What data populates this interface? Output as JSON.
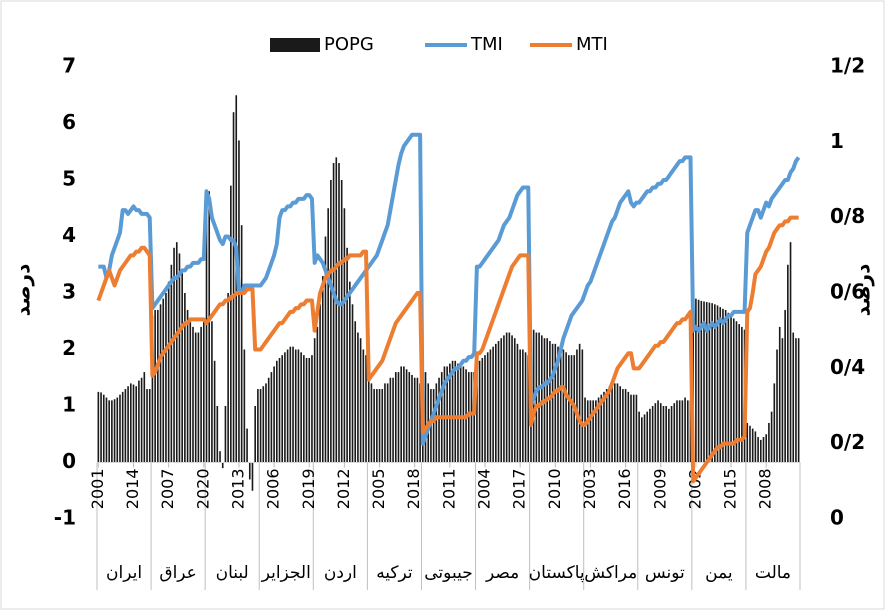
{
  "chart_data": {
    "type": "combo",
    "legend": "top",
    "y_label": "درصد",
    "y2_label": "درصد",
    "ylim": [
      -1,
      7
    ],
    "yticks": [
      -1,
      0,
      1,
      2,
      3,
      4,
      5,
      6,
      7
    ],
    "y2lim": [
      0,
      1.2
    ],
    "y2ticks": [
      0,
      {
        "value": 0.2,
        "label": "0/2"
      },
      {
        "value": 0.4,
        "label": "0/4"
      },
      {
        "value": 0.6,
        "label": "0/6"
      },
      {
        "value": 0.8,
        "label": "0/8"
      },
      1,
      {
        "value": 1.2,
        "label": "1/2"
      }
    ],
    "groups": [
      "ایران",
      "عراق",
      "لبنان",
      "الجزایر",
      "اردن",
      "ترکیه",
      "جیبوتی",
      "مصر",
      "پاکستان",
      "مراکش",
      "تونس",
      "یمن",
      "مالت"
    ],
    "categories": [
      "2001",
      null,
      null,
      null,
      null,
      null,
      null,
      null,
      null,
      null,
      null,
      null,
      null,
      "2014",
      null,
      null,
      null,
      null,
      null,
      null,
      null,
      null,
      null,
      null,
      null,
      null,
      "2007",
      null,
      null,
      null,
      null,
      null,
      null,
      null,
      null,
      null,
      null,
      null,
      null,
      "2020",
      null,
      null,
      null,
      null,
      null,
      null,
      null,
      null,
      null,
      null,
      null,
      null,
      "2013",
      null,
      null,
      null,
      null,
      null,
      null,
      null,
      null,
      null,
      null,
      null,
      null,
      "2006",
      null,
      null,
      null,
      null,
      null,
      null,
      null,
      null,
      null,
      null,
      null,
      null,
      "2019",
      null,
      null,
      null,
      null,
      null,
      null,
      null,
      null,
      null,
      null,
      null,
      null,
      "2012",
      null,
      null,
      null,
      null,
      null,
      null,
      null,
      null,
      null,
      null,
      null,
      null,
      "2005",
      null,
      null,
      null,
      null,
      null,
      null,
      null,
      null,
      null,
      null,
      null,
      null,
      "2018",
      null,
      null,
      null,
      null,
      null,
      null,
      null,
      null,
      null,
      null,
      null,
      null,
      "2011",
      null,
      null,
      null,
      null,
      null,
      null,
      null,
      null,
      null,
      null,
      null,
      null,
      "2004",
      null,
      null,
      null,
      null,
      null,
      null,
      null,
      null,
      null,
      null,
      null,
      null,
      "2017",
      null,
      null,
      null,
      null,
      null,
      null,
      null,
      null,
      null,
      null,
      null,
      null,
      "2010",
      null,
      null,
      null,
      null,
      null,
      null,
      null,
      null,
      null,
      null,
      null,
      null,
      "2003",
      null,
      null,
      null,
      null,
      null,
      null,
      null,
      null,
      null,
      null,
      null,
      null,
      "2016",
      null,
      null,
      null,
      null,
      null,
      null,
      null,
      null,
      null,
      null,
      null,
      null,
      "2009",
      null,
      null,
      null,
      null,
      null,
      null,
      null,
      null,
      null,
      null,
      null,
      null,
      "2002",
      null,
      null,
      null,
      null,
      null,
      null,
      null,
      null,
      null,
      null,
      null,
      null,
      "2015",
      null,
      null,
      null,
      null,
      null,
      null,
      null,
      null,
      null,
      null,
      null,
      null,
      "2008",
      null,
      null,
      null,
      null,
      null,
      null,
      null,
      null,
      null,
      null,
      null,
      null
    ],
    "series": [
      {
        "name": "POPG",
        "type": "bar",
        "color": "#1a1a1a",
        "values": [
          1.25,
          1.24,
          1.2,
          1.15,
          1.1,
          1.1,
          1.12,
          1.15,
          1.2,
          1.25,
          1.3,
          1.35,
          1.4,
          1.38,
          1.35,
          1.45,
          1.5,
          1.6,
          1.3,
          1.3,
          2.6,
          2.7,
          2.7,
          2.8,
          2.9,
          3.0,
          3.2,
          3.5,
          3.8,
          3.9,
          3.7,
          3.4,
          3.0,
          2.7,
          2.5,
          2.4,
          2.3,
          2.3,
          2.4,
          2.5,
          4.6,
          4.8,
          2.5,
          1.8,
          1.0,
          0.2,
          -0.1,
          1.0,
          3.0,
          4.9,
          6.2,
          6.5,
          5.7,
          4.2,
          2.0,
          0.6,
          -0.3,
          -0.5,
          1.0,
          1.3,
          1.3,
          1.35,
          1.4,
          1.5,
          1.6,
          1.7,
          1.8,
          1.85,
          1.9,
          1.95,
          2.0,
          2.05,
          2.05,
          2.0,
          2.0,
          1.95,
          1.9,
          1.85,
          1.85,
          1.9,
          2.2,
          2.4,
          2.8,
          3.3,
          4.0,
          4.5,
          5.0,
          5.3,
          5.4,
          5.3,
          5.0,
          4.5,
          3.8,
          3.2,
          2.8,
          2.5,
          2.3,
          2.2,
          2.0,
          1.9,
          1.5,
          1.4,
          1.3,
          1.3,
          1.3,
          1.3,
          1.4,
          1.4,
          1.5,
          1.5,
          1.6,
          1.6,
          1.7,
          1.7,
          1.65,
          1.6,
          1.55,
          1.5,
          1.5,
          1.4,
          1.8,
          1.6,
          1.4,
          1.3,
          1.3,
          1.4,
          1.5,
          1.6,
          1.7,
          1.7,
          1.75,
          1.8,
          1.8,
          1.75,
          1.7,
          1.7,
          1.65,
          1.6,
          1.6,
          1.6,
          1.8,
          1.8,
          1.85,
          1.9,
          1.95,
          2.0,
          2.05,
          2.1,
          2.15,
          2.2,
          2.25,
          2.3,
          2.3,
          2.25,
          2.2,
          2.1,
          2.0,
          2.0,
          1.95,
          1.9,
          2.4,
          2.35,
          2.3,
          2.3,
          2.25,
          2.2,
          2.2,
          2.15,
          2.1,
          2.1,
          2.05,
          2.0,
          2.0,
          1.95,
          1.9,
          1.9,
          1.9,
          2.0,
          2.1,
          2.0,
          1.15,
          1.1,
          1.1,
          1.1,
          1.1,
          1.15,
          1.2,
          1.25,
          1.3,
          1.35,
          1.4,
          1.4,
          1.4,
          1.35,
          1.3,
          1.3,
          1.25,
          1.2,
          1.2,
          1.2,
          0.9,
          0.8,
          0.85,
          0.9,
          0.95,
          1.0,
          1.05,
          1.1,
          1.05,
          1.0,
          1.0,
          0.95,
          1.0,
          1.05,
          1.1,
          1.1,
          1.1,
          1.15,
          1.1,
          1.1,
          2.9,
          2.9,
          2.88,
          2.86,
          2.85,
          2.84,
          2.83,
          2.82,
          2.8,
          2.78,
          2.75,
          2.72,
          2.7,
          2.65,
          2.6,
          2.55,
          2.5,
          2.45,
          2.4,
          2.35,
          0.7,
          0.65,
          0.6,
          0.55,
          0.45,
          0.4,
          0.45,
          0.5,
          0.7,
          0.9,
          1.4,
          2.0,
          2.4,
          2.2,
          2.7,
          3.5,
          3.9,
          2.3,
          2.2,
          2.2
        ]
      },
      {
        "name": "TMI",
        "type": "line",
        "axis": "y2",
        "color": "#5b9bd5",
        "values": [
          0.67,
          0.67,
          0.67,
          0.64,
          0.66,
          0.7,
          0.72,
          0.74,
          0.76,
          0.82,
          0.82,
          0.81,
          0.82,
          0.83,
          0.82,
          0.82,
          0.81,
          0.81,
          0.81,
          0.8,
          0.56,
          0.57,
          0.58,
          0.59,
          0.6,
          0.61,
          0.62,
          0.63,
          0.64,
          0.64,
          0.65,
          0.66,
          0.66,
          0.67,
          0.67,
          0.68,
          0.68,
          0.68,
          0.69,
          0.69,
          0.87,
          0.85,
          0.8,
          0.78,
          0.76,
          0.74,
          0.73,
          0.75,
          0.75,
          0.74,
          0.74,
          0.72,
          0.6,
          0.6,
          0.62,
          0.62,
          0.62,
          0.62,
          0.62,
          0.62,
          0.62,
          0.63,
          0.64,
          0.66,
          0.68,
          0.7,
          0.73,
          0.8,
          0.82,
          0.82,
          0.83,
          0.83,
          0.84,
          0.84,
          0.85,
          0.85,
          0.85,
          0.86,
          0.86,
          0.85,
          0.68,
          0.7,
          0.69,
          0.68,
          0.66,
          0.64,
          0.62,
          0.6,
          0.58,
          0.57,
          0.57,
          0.58,
          0.59,
          0.6,
          0.61,
          0.62,
          0.63,
          0.64,
          0.65,
          0.66,
          0.67,
          0.68,
          0.69,
          0.7,
          0.72,
          0.74,
          0.76,
          0.78,
          0.82,
          0.86,
          0.9,
          0.94,
          0.97,
          0.99,
          1.0,
          1.01,
          1.02,
          1.02,
          1.02,
          1.02,
          0.2,
          0.22,
          0.24,
          0.26,
          0.28,
          0.3,
          0.32,
          0.34,
          0.36,
          0.37,
          0.38,
          0.39,
          0.4,
          0.4,
          0.41,
          0.42,
          0.42,
          0.43,
          0.43,
          0.44,
          0.67,
          0.67,
          0.68,
          0.69,
          0.7,
          0.71,
          0.72,
          0.73,
          0.74,
          0.76,
          0.78,
          0.79,
          0.8,
          0.82,
          0.84,
          0.86,
          0.87,
          0.88,
          0.88,
          0.88,
          0.3,
          0.32,
          0.34,
          0.35,
          0.35,
          0.36,
          0.36,
          0.37,
          0.38,
          0.4,
          0.42,
          0.45,
          0.48,
          0.5,
          0.52,
          0.54,
          0.55,
          0.56,
          0.57,
          0.58,
          0.6,
          0.62,
          0.63,
          0.65,
          0.67,
          0.69,
          0.71,
          0.73,
          0.75,
          0.77,
          0.79,
          0.8,
          0.82,
          0.84,
          0.85,
          0.86,
          0.87,
          0.84,
          0.83,
          0.84,
          0.84,
          0.85,
          0.86,
          0.87,
          0.87,
          0.88,
          0.88,
          0.89,
          0.89,
          0.9,
          0.9,
          0.91,
          0.92,
          0.93,
          0.94,
          0.95,
          0.95,
          0.96,
          0.96,
          0.96,
          0.5,
          0.51,
          0.5,
          0.51,
          0.52,
          0.5,
          0.51,
          0.52,
          0.51,
          0.52,
          0.53,
          0.52,
          0.53,
          0.54,
          0.54,
          0.55,
          0.55,
          0.55,
          0.55,
          0.55,
          0.76,
          0.78,
          0.8,
          0.82,
          0.82,
          0.8,
          0.82,
          0.84,
          0.83,
          0.85,
          0.86,
          0.87,
          0.88,
          0.89,
          0.9,
          0.9,
          0.92,
          0.93,
          0.95,
          0.96
        ]
      },
      {
        "name": "MTI",
        "type": "line",
        "axis": "y2",
        "color": "#ed7d31",
        "values": [
          0.58,
          0.6,
          0.62,
          0.64,
          0.66,
          0.64,
          0.62,
          0.64,
          0.66,
          0.67,
          0.68,
          0.69,
          0.7,
          0.7,
          0.71,
          0.71,
          0.72,
          0.72,
          0.71,
          0.7,
          0.38,
          0.39,
          0.41,
          0.43,
          0.44,
          0.45,
          0.46,
          0.47,
          0.48,
          0.49,
          0.5,
          0.51,
          0.52,
          0.52,
          0.53,
          0.53,
          0.53,
          0.53,
          0.53,
          0.53,
          0.52,
          0.53,
          0.54,
          0.55,
          0.56,
          0.57,
          0.57,
          0.58,
          0.58,
          0.59,
          0.59,
          0.6,
          0.6,
          0.6,
          0.6,
          0.61,
          0.61,
          0.61,
          0.45,
          0.45,
          0.45,
          0.46,
          0.47,
          0.48,
          0.49,
          0.5,
          0.51,
          0.52,
          0.52,
          0.53,
          0.54,
          0.55,
          0.55,
          0.56,
          0.56,
          0.57,
          0.57,
          0.58,
          0.58,
          0.58,
          0.5,
          0.55,
          0.6,
          0.62,
          0.64,
          0.65,
          0.66,
          0.66,
          0.67,
          0.68,
          0.68,
          0.69,
          0.69,
          0.7,
          0.7,
          0.7,
          0.7,
          0.7,
          0.71,
          0.71,
          0.37,
          0.38,
          0.39,
          0.4,
          0.41,
          0.42,
          0.44,
          0.46,
          0.48,
          0.5,
          0.52,
          0.53,
          0.54,
          0.55,
          0.56,
          0.57,
          0.58,
          0.59,
          0.6,
          0.6,
          0.23,
          0.24,
          0.25,
          0.26,
          0.26,
          0.27,
          0.27,
          0.27,
          0.27,
          0.27,
          0.27,
          0.27,
          0.27,
          0.27,
          0.27,
          0.27,
          0.27,
          0.28,
          0.28,
          0.28,
          0.44,
          0.44,
          0.45,
          0.47,
          0.49,
          0.51,
          0.53,
          0.55,
          0.57,
          0.59,
          0.61,
          0.63,
          0.65,
          0.67,
          0.68,
          0.69,
          0.7,
          0.7,
          0.7,
          0.7,
          0.25,
          0.28,
          0.3,
          0.3,
          0.31,
          0.31,
          0.32,
          0.32,
          0.33,
          0.34,
          0.34,
          0.35,
          0.35,
          0.33,
          0.32,
          0.31,
          0.3,
          0.28,
          0.26,
          0.25,
          0.25,
          0.26,
          0.27,
          0.28,
          0.29,
          0.3,
          0.31,
          0.32,
          0.33,
          0.34,
          0.36,
          0.38,
          0.4,
          0.41,
          0.42,
          0.43,
          0.44,
          0.44,
          0.4,
          0.4,
          0.4,
          0.41,
          0.42,
          0.43,
          0.44,
          0.45,
          0.46,
          0.46,
          0.47,
          0.47,
          0.48,
          0.49,
          0.5,
          0.51,
          0.52,
          0.52,
          0.53,
          0.53,
          0.54,
          0.55,
          0.1,
          0.11,
          0.12,
          0.13,
          0.14,
          0.15,
          0.16,
          0.17,
          0.18,
          0.19,
          0.19,
          0.2,
          0.2,
          0.2,
          0.2,
          0.2,
          0.21,
          0.21,
          0.21,
          0.22,
          0.55,
          0.56,
          0.6,
          0.65,
          0.66,
          0.67,
          0.69,
          0.71,
          0.72,
          0.74,
          0.76,
          0.77,
          0.78,
          0.78,
          0.79,
          0.79,
          0.8,
          0.8,
          0.8,
          0.8
        ]
      }
    ]
  }
}
